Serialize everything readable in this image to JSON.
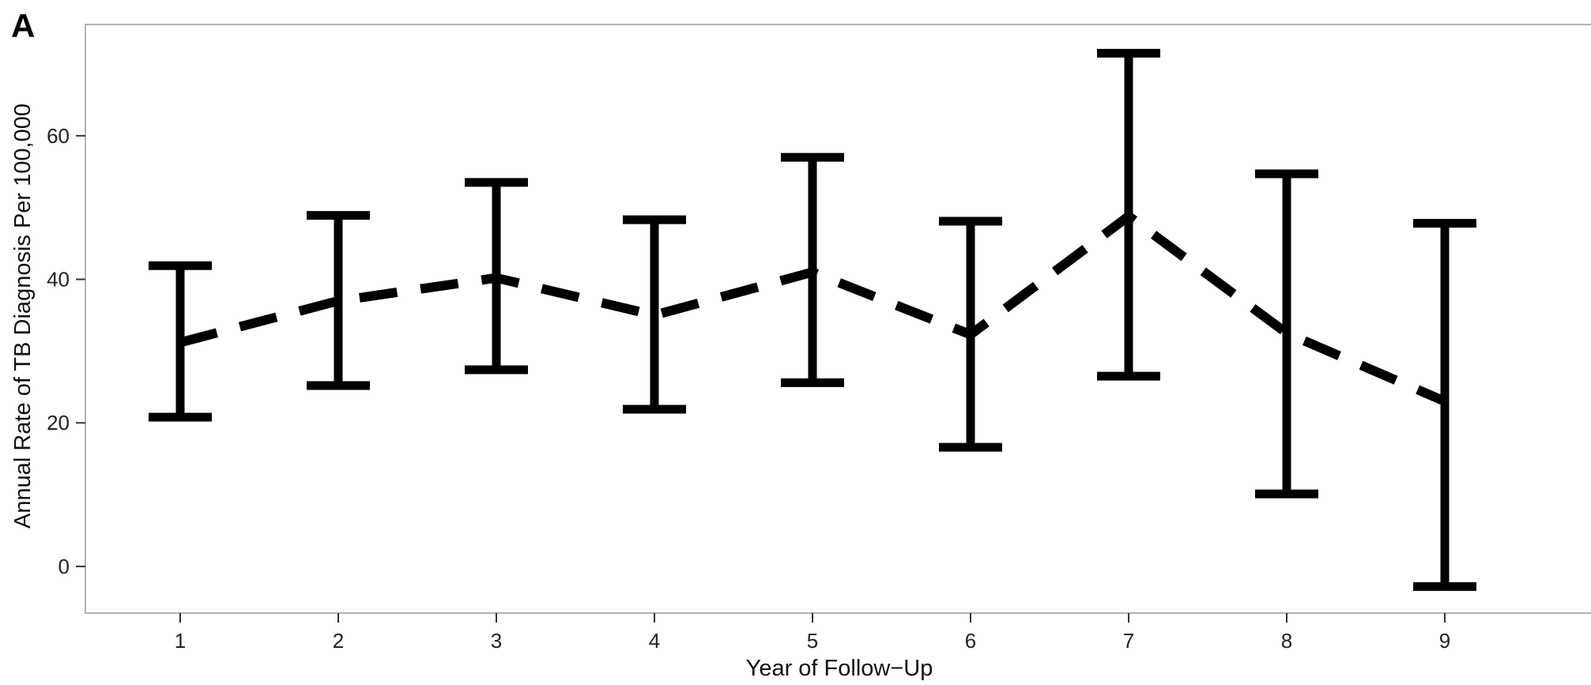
{
  "panel_label": "A",
  "chart_data": {
    "type": "line",
    "title": "",
    "xlabel": "Year of Follow−Up",
    "ylabel": "Annual Rate of TB Diagnosis Per 100,000",
    "categories": [
      1,
      2,
      3,
      4,
      5,
      6,
      7,
      8,
      9
    ],
    "x_tick_labels": [
      "1",
      "2",
      "3",
      "4",
      "5",
      "6",
      "7",
      "8",
      "9"
    ],
    "y_ticks": [
      0,
      20,
      40,
      60
    ],
    "y_tick_labels": [
      "0",
      "20",
      "40",
      "60"
    ],
    "xlim": [
      0.4,
      9.95
    ],
    "ylim": [
      -6.5,
      75.5
    ],
    "grid": false,
    "legend": "none",
    "series": [
      {
        "values": [
          31.2,
          37.0,
          40.2,
          35.0,
          41.0,
          32.3,
          48.8,
          32.5,
          23.0
        ],
        "line_style": "dashed",
        "error_bars": {
          "lower": [
            20.8,
            25.2,
            27.4,
            21.9,
            25.6,
            16.6,
            26.5,
            10.1,
            -2.8
          ],
          "upper": [
            41.9,
            48.9,
            53.5,
            48.3,
            57.0,
            48.1,
            71.5,
            54.7,
            47.8
          ]
        }
      }
    ],
    "colors": {
      "line": "#000000",
      "panel_border": "#b3b3b3",
      "tick_text": "#222222"
    }
  }
}
